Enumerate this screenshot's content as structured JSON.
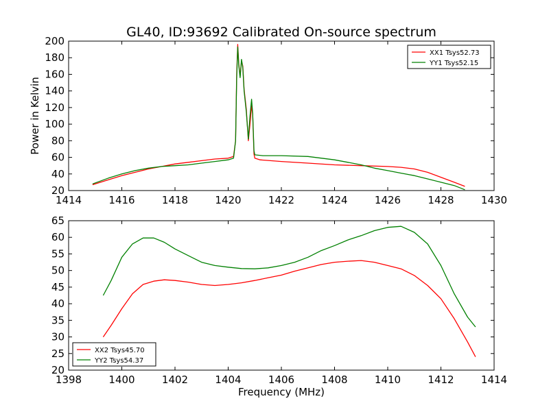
{
  "figure": {
    "title": "GL40, ID:93692 Calibrated On-source spectrum"
  },
  "chart_data": [
    {
      "type": "line",
      "title": "GL40, ID:93692 Calibrated On-source spectrum",
      "xlabel": "",
      "ylabel": "Power in Kelvin",
      "xlim": [
        1414,
        1430
      ],
      "ylim": [
        20,
        200
      ],
      "xticks": [
        1414,
        1416,
        1418,
        1420,
        1422,
        1424,
        1426,
        1428,
        1430
      ],
      "yticks": [
        20,
        40,
        60,
        80,
        100,
        120,
        140,
        160,
        180,
        200
      ],
      "legend_position": "top-right",
      "grid": false,
      "series": [
        {
          "name": "XX1 Tsys52.73",
          "color": "#ff0000",
          "points": [
            [
              1414.9,
              27
            ],
            [
              1415.5,
              33
            ],
            [
              1416,
              38
            ],
            [
              1416.5,
              42
            ],
            [
              1417,
              46
            ],
            [
              1417.5,
              49
            ],
            [
              1418,
              52
            ],
            [
              1418.5,
              54
            ],
            [
              1419,
              56
            ],
            [
              1419.5,
              58
            ],
            [
              1420,
              59
            ],
            [
              1420.2,
              61
            ],
            [
              1420.28,
              80
            ],
            [
              1420.32,
              160
            ],
            [
              1420.36,
              196
            ],
            [
              1420.4,
              172
            ],
            [
              1420.45,
              158
            ],
            [
              1420.5,
              176
            ],
            [
              1420.55,
              170
            ],
            [
              1420.6,
              142
            ],
            [
              1420.68,
              118
            ],
            [
              1420.76,
              80
            ],
            [
              1420.82,
              100
            ],
            [
              1420.88,
              122
            ],
            [
              1420.92,
              112
            ],
            [
              1420.97,
              64
            ],
            [
              1421,
              59
            ],
            [
              1421.2,
              57
            ],
            [
              1422,
              55
            ],
            [
              1423,
              53
            ],
            [
              1424,
              51
            ],
            [
              1425,
              50
            ],
            [
              1426,
              49
            ],
            [
              1426.5,
              48
            ],
            [
              1427,
              46
            ],
            [
              1427.5,
              42
            ],
            [
              1428,
              36
            ],
            [
              1428.5,
              30
            ],
            [
              1428.9,
              25
            ]
          ]
        },
        {
          "name": "YY1 Tsys52.15",
          "color": "#008000",
          "points": [
            [
              1414.9,
              28
            ],
            [
              1415.5,
              35
            ],
            [
              1416,
              40
            ],
            [
              1416.5,
              44
            ],
            [
              1417,
              47
            ],
            [
              1417.5,
              49
            ],
            [
              1418,
              50
            ],
            [
              1418.5,
              51
            ],
            [
              1419,
              53
            ],
            [
              1419.5,
              55
            ],
            [
              1420,
              57
            ],
            [
              1420.2,
              59
            ],
            [
              1420.28,
              80
            ],
            [
              1420.32,
              155
            ],
            [
              1420.36,
              193
            ],
            [
              1420.4,
              170
            ],
            [
              1420.45,
              156
            ],
            [
              1420.5,
              178
            ],
            [
              1420.55,
              168
            ],
            [
              1420.6,
              140
            ],
            [
              1420.68,
              115
            ],
            [
              1420.76,
              82
            ],
            [
              1420.82,
              110
            ],
            [
              1420.88,
              130
            ],
            [
              1420.92,
              113
            ],
            [
              1420.97,
              68
            ],
            [
              1421,
              63
            ],
            [
              1421.3,
              62
            ],
            [
              1422,
              62
            ],
            [
              1423,
              61
            ],
            [
              1424,
              57
            ],
            [
              1424.5,
              54
            ],
            [
              1425,
              51
            ],
            [
              1425.5,
              47
            ],
            [
              1426,
              44
            ],
            [
              1426.5,
              41
            ],
            [
              1427,
              38
            ],
            [
              1427.5,
              34
            ],
            [
              1428,
              30
            ],
            [
              1428.5,
              26
            ],
            [
              1428.9,
              21
            ]
          ]
        }
      ]
    },
    {
      "type": "line",
      "title": "",
      "xlabel": "Frequency (MHz)",
      "ylabel": "",
      "xlim": [
        1398,
        1414
      ],
      "ylim": [
        20,
        65
      ],
      "xticks": [
        1398,
        1400,
        1402,
        1404,
        1406,
        1408,
        1410,
        1412,
        1414
      ],
      "yticks": [
        20,
        25,
        30,
        35,
        40,
        45,
        50,
        55,
        60,
        65
      ],
      "legend_position": "bottom-left",
      "grid": false,
      "series": [
        {
          "name": "XX2 Tsys45.70",
          "color": "#ff0000",
          "points": [
            [
              1399.3,
              30
            ],
            [
              1399.6,
              33.5
            ],
            [
              1400,
              38.5
            ],
            [
              1400.4,
              43
            ],
            [
              1400.8,
              45.8
            ],
            [
              1401.2,
              46.8
            ],
            [
              1401.6,
              47.2
            ],
            [
              1402,
              47
            ],
            [
              1402.5,
              46.5
            ],
            [
              1403,
              45.8
            ],
            [
              1403.5,
              45.5
            ],
            [
              1404,
              45.8
            ],
            [
              1404.5,
              46.3
            ],
            [
              1405,
              47
            ],
            [
              1405.5,
              47.8
            ],
            [
              1406,
              48.6
            ],
            [
              1406.5,
              49.8
            ],
            [
              1407,
              50.8
            ],
            [
              1407.5,
              51.8
            ],
            [
              1408,
              52.5
            ],
            [
              1408.5,
              52.8
            ],
            [
              1409,
              53
            ],
            [
              1409.5,
              52.5
            ],
            [
              1410,
              51.5
            ],
            [
              1410.5,
              50.5
            ],
            [
              1411,
              48.5
            ],
            [
              1411.5,
              45.5
            ],
            [
              1412,
              41.5
            ],
            [
              1412.5,
              35.5
            ],
            [
              1413,
              28.5
            ],
            [
              1413.3,
              24
            ]
          ]
        },
        {
          "name": "YY2 Tsys54.37",
          "color": "#008000",
          "points": [
            [
              1399.3,
              42.5
            ],
            [
              1399.6,
              47
            ],
            [
              1400,
              54
            ],
            [
              1400.4,
              58
            ],
            [
              1400.8,
              59.8
            ],
            [
              1401.2,
              59.8
            ],
            [
              1401.6,
              58.5
            ],
            [
              1402,
              56.5
            ],
            [
              1402.5,
              54.5
            ],
            [
              1403,
              52.5
            ],
            [
              1403.5,
              51.5
            ],
            [
              1404,
              51
            ],
            [
              1404.5,
              50.6
            ],
            [
              1405,
              50.5
            ],
            [
              1405.5,
              50.8
            ],
            [
              1406,
              51.5
            ],
            [
              1406.5,
              52.5
            ],
            [
              1407,
              54
            ],
            [
              1407.5,
              56
            ],
            [
              1408,
              57.5
            ],
            [
              1408.5,
              59.2
            ],
            [
              1409,
              60.5
            ],
            [
              1409.5,
              62
            ],
            [
              1410,
              63
            ],
            [
              1410.5,
              63.3
            ],
            [
              1411,
              61.5
            ],
            [
              1411.5,
              58
            ],
            [
              1412,
              51.5
            ],
            [
              1412.5,
              43
            ],
            [
              1413,
              36
            ],
            [
              1413.3,
              33
            ]
          ]
        }
      ]
    }
  ]
}
